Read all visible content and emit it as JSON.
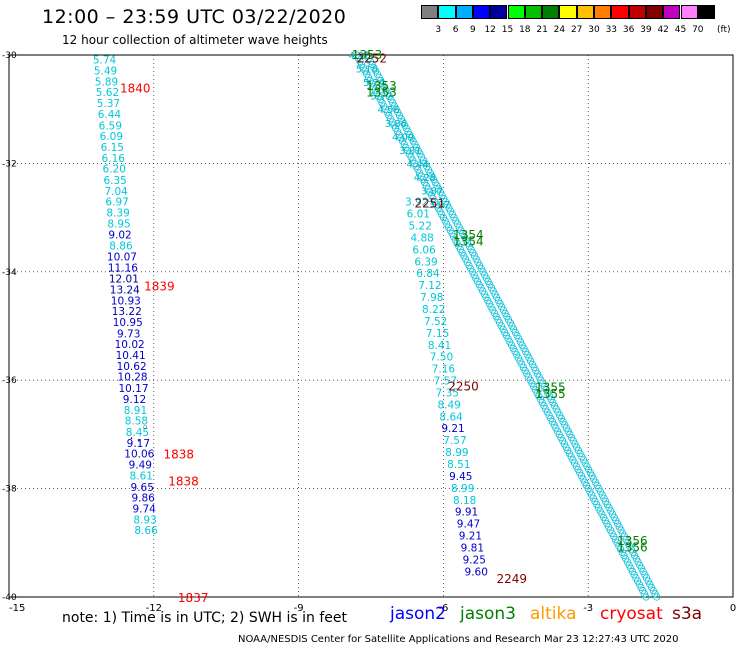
{
  "header": {
    "title": "12:00 – 23:59 UTC 03/22/2020",
    "subtitle": "12 hour collection of altimeter wave heights"
  },
  "colorbar": {
    "colors": [
      "#808080",
      "#00ffff",
      "#00b0ff",
      "#0000ff",
      "#0000a0",
      "#00ff00",
      "#00c000",
      "#008000",
      "#ffff00",
      "#ffc000",
      "#ff8000",
      "#ff0000",
      "#c00000",
      "#800000",
      "#c000c0",
      "#ff80ff",
      "#000000"
    ],
    "labels": [
      "3",
      "6",
      "9",
      "12",
      "15",
      "18",
      "21",
      "24",
      "27",
      "30",
      "33",
      "36",
      "39",
      "42",
      "45",
      "70"
    ],
    "unit": "(ft)"
  },
  "chart_data": {
    "type": "scatter",
    "title": "12:00 – 23:59 UTC 03/22/2020",
    "xlim": [
      -15,
      0
    ],
    "ylim": [
      -40,
      -30
    ],
    "x_ticks": [
      -15,
      -12,
      -9,
      -6,
      -3,
      0
    ],
    "y_ticks": [
      -30,
      -32,
      -34,
      -36,
      -38,
      -40
    ],
    "grid": true,
    "tracks": [
      {
        "satellite": "cryosat",
        "pass_time": "1840/1839/1838/1838/1837",
        "points": [
          [
            -13.02,
            -30.16,
            "5.74"
          ],
          [
            -13.0,
            -30.36,
            "5.49"
          ],
          [
            -12.98,
            -30.56,
            "5.89"
          ],
          [
            -12.96,
            -30.76,
            "5.62"
          ],
          [
            -12.94,
            -30.96,
            "5.37"
          ],
          [
            -12.92,
            -31.16,
            "6.44"
          ],
          [
            -12.9,
            -31.37,
            "6.59"
          ],
          [
            -12.88,
            -31.57,
            "6.09"
          ],
          [
            -12.86,
            -31.77,
            "6.15"
          ],
          [
            -12.84,
            -31.97,
            "6.16"
          ],
          [
            -12.82,
            -32.17,
            "6.20"
          ],
          [
            -12.8,
            -32.38,
            "6.35"
          ],
          [
            -12.78,
            -32.58,
            "7.04"
          ],
          [
            -12.76,
            -32.78,
            "6.97"
          ],
          [
            -12.74,
            -32.98,
            "8.39"
          ],
          [
            -12.72,
            -33.18,
            "8.95"
          ],
          [
            -12.7,
            -33.39,
            "9.02"
          ],
          [
            -12.68,
            -33.59,
            "8.86"
          ],
          [
            -12.66,
            -33.79,
            "10.07"
          ],
          [
            -12.64,
            -33.99,
            "11.16"
          ],
          [
            -12.62,
            -34.2,
            "12.01"
          ],
          [
            -12.6,
            -34.4,
            "13.24"
          ],
          [
            -12.58,
            -34.6,
            "10.93"
          ],
          [
            -12.56,
            -34.8,
            "13.22"
          ],
          [
            -12.54,
            -35.0,
            "10.95"
          ],
          [
            -12.52,
            -35.21,
            "9.73"
          ],
          [
            -12.5,
            -35.41,
            "10.02"
          ],
          [
            -12.48,
            -35.61,
            "10.41"
          ],
          [
            -12.46,
            -35.81,
            "10.62"
          ],
          [
            -12.44,
            -36.01,
            "10.28"
          ],
          [
            -12.42,
            -36.22,
            "10.17"
          ],
          [
            -12.4,
            -36.42,
            "9.12"
          ],
          [
            -12.38,
            -36.62,
            "8.91"
          ],
          [
            -12.36,
            -36.82,
            "8.58"
          ],
          [
            -12.34,
            -37.03,
            "8.45"
          ],
          [
            -12.32,
            -37.23,
            "9.17"
          ],
          [
            -12.3,
            -37.43,
            "10.06"
          ],
          [
            -12.28,
            -37.63,
            "9.49"
          ],
          [
            -12.26,
            -37.83,
            "8.61"
          ],
          [
            -12.24,
            -38.04,
            "9.65"
          ],
          [
            -12.22,
            -38.24,
            "9.86"
          ],
          [
            -12.2,
            -38.44,
            "9.74"
          ],
          [
            -12.18,
            -38.64,
            "8.93"
          ],
          [
            -12.16,
            -38.84,
            "8.66"
          ]
        ]
      },
      {
        "satellite": "s3a",
        "pass_time": "2251/2250/2249",
        "points": [
          [
            -6.55,
            -32.78,
            "3.92"
          ],
          [
            -6.52,
            -33.0,
            "6.01"
          ],
          [
            -6.48,
            -33.22,
            "5.22"
          ],
          [
            -6.44,
            -33.44,
            "4.88"
          ],
          [
            -6.4,
            -33.66,
            "6.06"
          ],
          [
            -6.36,
            -33.88,
            "6.39"
          ],
          [
            -6.32,
            -34.1,
            "6.84"
          ],
          [
            -6.28,
            -34.32,
            "7.12"
          ],
          [
            -6.24,
            -34.54,
            "7.98"
          ],
          [
            -6.2,
            -34.76,
            "8.22"
          ],
          [
            -6.16,
            -34.98,
            "7.52"
          ],
          [
            -6.12,
            -35.2,
            "7.15"
          ],
          [
            -6.08,
            -35.42,
            "8.41"
          ],
          [
            -6.04,
            -35.64,
            "7.50"
          ],
          [
            -6.0,
            -35.86,
            "7.16"
          ],
          [
            -5.96,
            -36.08,
            "7.57"
          ],
          [
            -5.92,
            -36.3,
            "7.35"
          ],
          [
            -5.88,
            -36.52,
            "8.49"
          ],
          [
            -5.84,
            -36.74,
            "8.64"
          ],
          [
            -5.8,
            -36.96,
            "9.21"
          ],
          [
            -5.76,
            -37.18,
            "7.57"
          ],
          [
            -5.72,
            -37.4,
            "8.99"
          ],
          [
            -5.68,
            -37.62,
            "8.51"
          ],
          [
            -5.64,
            -37.84,
            "9.45"
          ],
          [
            -5.6,
            -38.06,
            "8.99"
          ],
          [
            -5.56,
            -38.28,
            "8.18"
          ],
          [
            -5.52,
            -38.5,
            "9.91"
          ],
          [
            -5.48,
            -38.72,
            "9.47"
          ],
          [
            -5.44,
            -38.94,
            "9.21"
          ],
          [
            -5.4,
            -39.16,
            "9.81"
          ],
          [
            -5.36,
            -39.38,
            "9.25"
          ],
          [
            -5.32,
            -39.6,
            "9.60"
          ]
        ]
      }
    ],
    "pass_labels": [
      {
        "text": "1840",
        "x": -12.7,
        "y": -30.6,
        "color": "#ff0000"
      },
      {
        "text": "1839",
        "x": -12.2,
        "y": -34.25,
        "color": "#ff0000"
      },
      {
        "text": "1838",
        "x": -11.8,
        "y": -37.35,
        "color": "#ff0000"
      },
      {
        "text": "1838",
        "x": -11.7,
        "y": -37.85,
        "color": "#ff0000"
      },
      {
        "text": "1837",
        "x": -11.5,
        "y": -40.0,
        "color": "#ff0000"
      },
      {
        "text": "2252",
        "x": -7.8,
        "y": -30.05,
        "color": "#800000"
      },
      {
        "text": "2251",
        "x": -6.6,
        "y": -32.72,
        "color": "#800000"
      },
      {
        "text": "2250",
        "x": -5.9,
        "y": -36.1,
        "color": "#800000"
      },
      {
        "text": "2249",
        "x": -4.9,
        "y": -39.65,
        "color": "#800000"
      },
      {
        "text": "1353",
        "x": -7.9,
        "y": -29.98,
        "color": "#008000"
      },
      {
        "text": "1353",
        "x": -7.6,
        "y": -30.55,
        "color": "#008000"
      },
      {
        "text": "1353",
        "x": -7.6,
        "y": -30.67,
        "color": "#008000"
      },
      {
        "text": "1354",
        "x": -5.8,
        "y": -33.3,
        "color": "#008000"
      },
      {
        "text": "1354",
        "x": -5.8,
        "y": -33.42,
        "color": "#008000"
      },
      {
        "text": "1355",
        "x": -4.1,
        "y": -36.12,
        "color": "#008000"
      },
      {
        "text": "1355",
        "x": -4.1,
        "y": -36.24,
        "color": "#008000"
      },
      {
        "text": "1356",
        "x": -2.4,
        "y": -38.95,
        "color": "#008000"
      },
      {
        "text": "1356",
        "x": -2.4,
        "y": -39.07,
        "color": "#008000"
      }
    ],
    "dense_tracks_start": [
      -7.8,
      -30.0
    ],
    "dense_tracks_end": [
      -1.8,
      -40.0
    ],
    "dense_track_samples": [
      "4.98",
      "5.16",
      "5.24",
      "5.77",
      "4.56",
      "3.86",
      "4.09",
      "3.81",
      "4.44",
      "4.28",
      "3.87",
      "3.97"
    ],
    "marks": [
      {
        "label": "◦",
        "x": -12.25,
        "y": -36.95
      },
      {
        "label": "·",
        "x": -12.5,
        "y": -37.15
      },
      {
        "label": "·",
        "x": -12.35,
        "y": -37.2
      }
    ]
  },
  "legend": {
    "note": "note: 1) Time is in UTC; 2) SWH is in feet",
    "satellites": [
      {
        "name": "jason2",
        "color": "#0000ff"
      },
      {
        "name": "jason3",
        "color": "#008000"
      },
      {
        "name": "altika",
        "color": "#ff9900"
      },
      {
        "name": "cryosat",
        "color": "#ff0000"
      },
      {
        "name": "s3a",
        "color": "#800000"
      }
    ]
  },
  "footer": "NOAA/NESDIS Center for Satellite Applications and Research    Mar 23 12:27:43 UTC 2020"
}
